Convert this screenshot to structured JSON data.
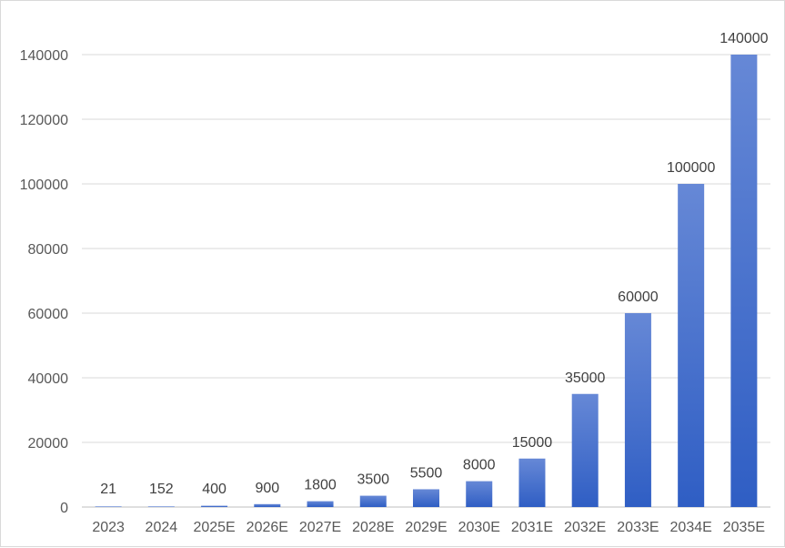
{
  "chart_data": {
    "type": "bar",
    "title": "",
    "xlabel": "",
    "ylabel": "",
    "categories": [
      "2023",
      "2024",
      "2025E",
      "2026E",
      "2027E",
      "2028E",
      "2029E",
      "2030E",
      "2031E",
      "2032E",
      "2033E",
      "2034E",
      "2035E"
    ],
    "values": [
      21,
      152,
      400,
      900,
      1800,
      3500,
      5500,
      8000,
      15000,
      35000,
      60000,
      100000,
      140000
    ],
    "data_labels": [
      "21",
      "152",
      "400",
      "900",
      "1800",
      "3500",
      "5500",
      "8000",
      "15000",
      "35000",
      "60000",
      "100000",
      "140000"
    ],
    "ylim": [
      0,
      140000
    ],
    "yticks": [
      0,
      20000,
      40000,
      60000,
      80000,
      100000,
      120000,
      140000
    ],
    "ytick_labels": [
      "0",
      "20000",
      "40000",
      "60000",
      "80000",
      "100000",
      "120000",
      "140000"
    ],
    "grid": true,
    "legend": "none",
    "colors": {
      "bar_top": "#6688D6",
      "bar_bottom": "#2F5EC4",
      "grid": "#D9D9D9"
    }
  }
}
